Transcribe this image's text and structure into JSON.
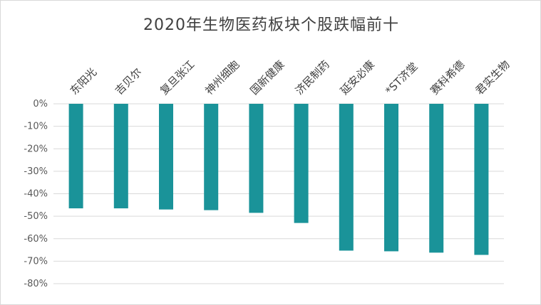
{
  "chart_data": {
    "type": "bar",
    "title": "2020年生物医药板块个股跌幅前十",
    "categories": [
      "东阳光",
      "吉贝尔",
      "复旦张江",
      "神州细胞",
      "国新健康",
      "济民制药",
      "延安必康",
      "*ST济堂",
      "赛科希德",
      "君实生物"
    ],
    "values": [
      -46.5,
      -46.5,
      -47.0,
      -47.3,
      -48.5,
      -53.0,
      -65.3,
      -65.6,
      -66.2,
      -67.2
    ],
    "unit": "%",
    "ylim": [
      -80,
      0
    ],
    "yticks": [
      0,
      -10,
      -20,
      -30,
      -40,
      -50,
      -60,
      -70,
      -80
    ],
    "ytick_labels": [
      "0%",
      "-10%",
      "-20%",
      "-30%",
      "-40%",
      "-50%",
      "-60%",
      "-70%",
      "-80%"
    ],
    "xlabel": "",
    "ylabel": "",
    "grid": true,
    "legend": "none",
    "bar_color": "#1a9399",
    "category_axis_position": "top",
    "category_label_rotation": "-45deg"
  }
}
